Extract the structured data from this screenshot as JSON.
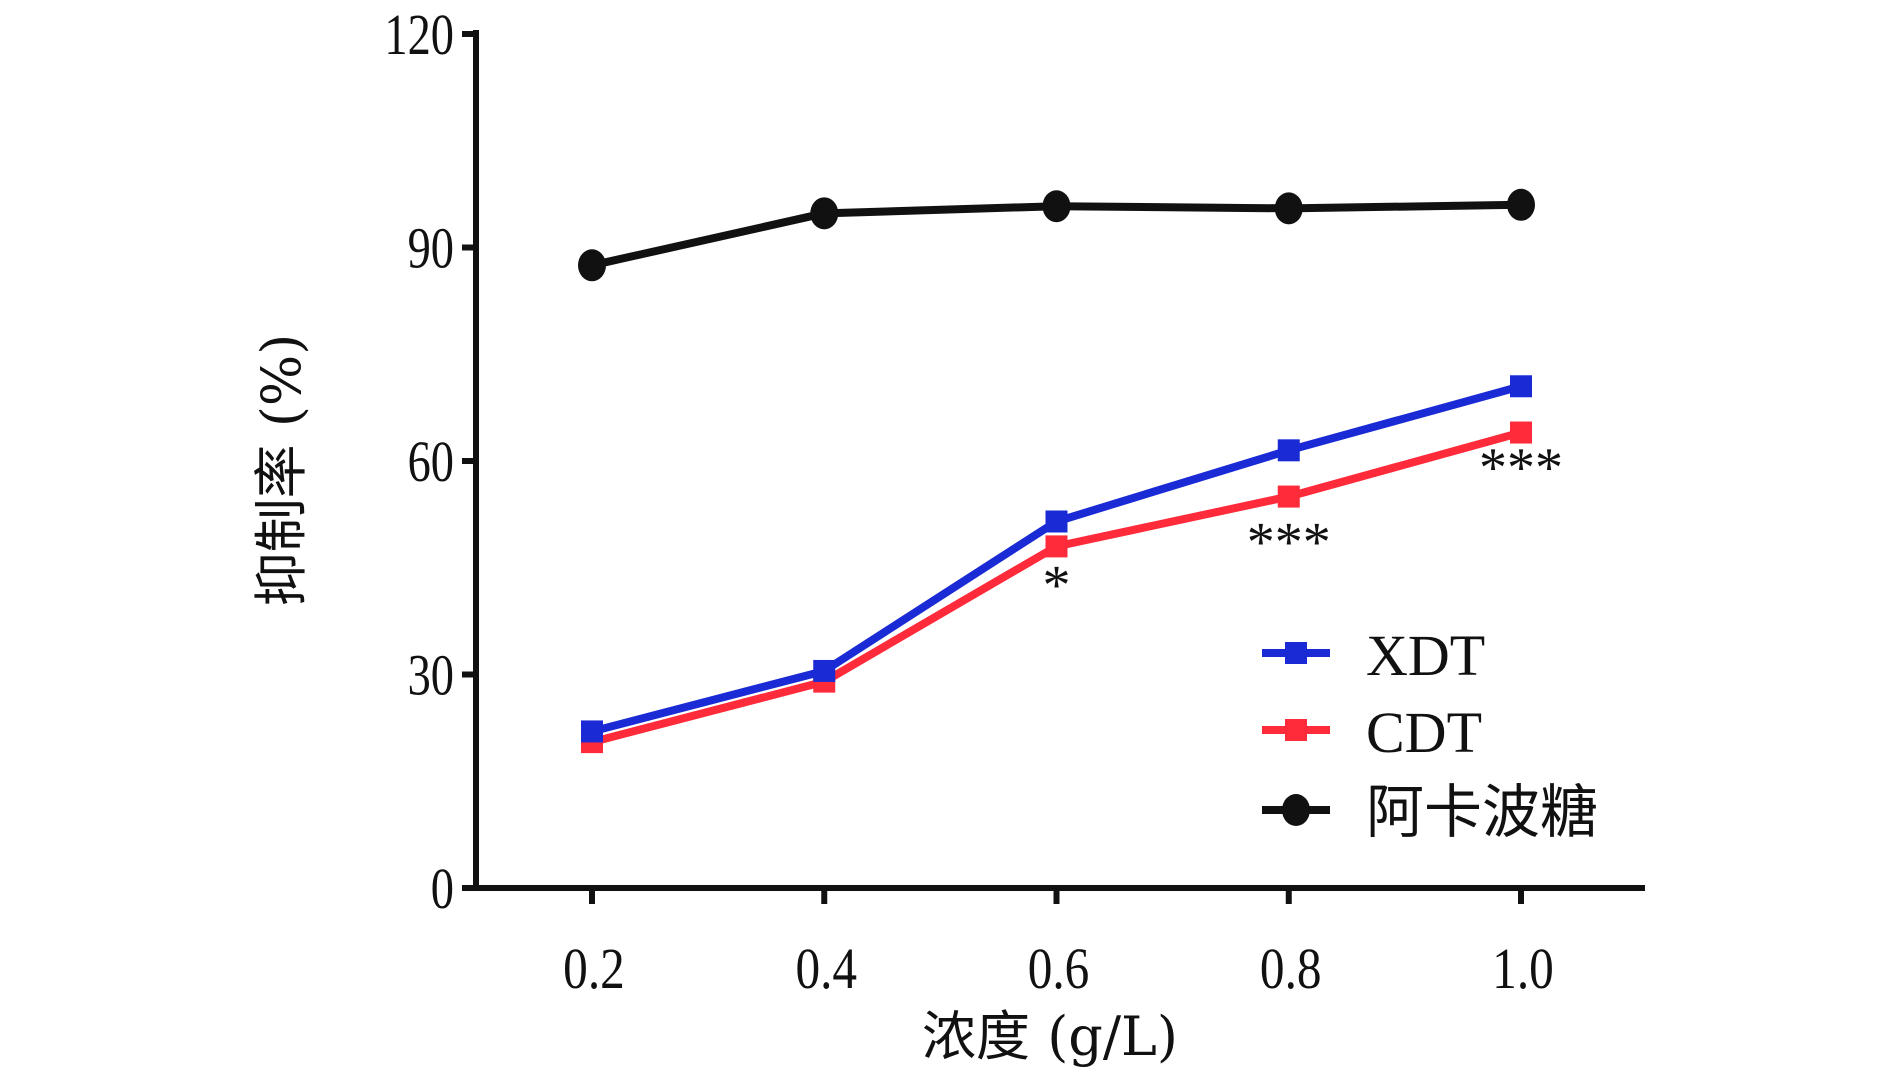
{
  "chart_data": {
    "type": "line",
    "title": "",
    "xlabel": "浓度 (g/L)",
    "ylabel": "抑制率 (%)",
    "x": [
      0.2,
      0.4,
      0.6,
      0.8,
      1.0
    ],
    "x_tick_labels": [
      "0.2",
      "0.4",
      "0.6",
      "0.8",
      "1.0"
    ],
    "ylim": [
      0,
      120
    ],
    "y_ticks": [
      0,
      30,
      60,
      90,
      120
    ],
    "y_tick_labels": [
      "0",
      "30",
      "60",
      "90",
      "120"
    ],
    "grid": false,
    "legend_position": "bottom-right",
    "series": [
      {
        "name": "XDT",
        "color": "#1a2bd6",
        "marker": "triangle-down",
        "values": [
          22,
          30.5,
          51.5,
          61.5,
          70.5
        ]
      },
      {
        "name": "CDT",
        "color": "#ff2a3a",
        "marker": "triangle-up",
        "values": [
          20.5,
          29,
          48,
          55,
          64
        ]
      },
      {
        "name": "阿卡波糖",
        "color": "#111111",
        "marker": "circle",
        "values": [
          87.5,
          94.8,
          95.8,
          95.5,
          96
        ]
      }
    ],
    "annotations": [
      {
        "x": 0.6,
        "y": 40,
        "text": "*"
      },
      {
        "x": 0.8,
        "y": 46,
        "text": "***"
      },
      {
        "x": 1.0,
        "y": 56.5,
        "text": "***"
      }
    ]
  }
}
